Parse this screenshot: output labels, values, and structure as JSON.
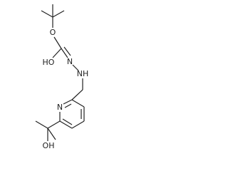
{
  "atoms": [
    {
      "label": "O"
    },
    {
      "label": "HO"
    },
    {
      "label": "N"
    },
    {
      "label": "NH"
    },
    {
      "label": "N"
    },
    {
      "label": "OH"
    }
  ]
}
